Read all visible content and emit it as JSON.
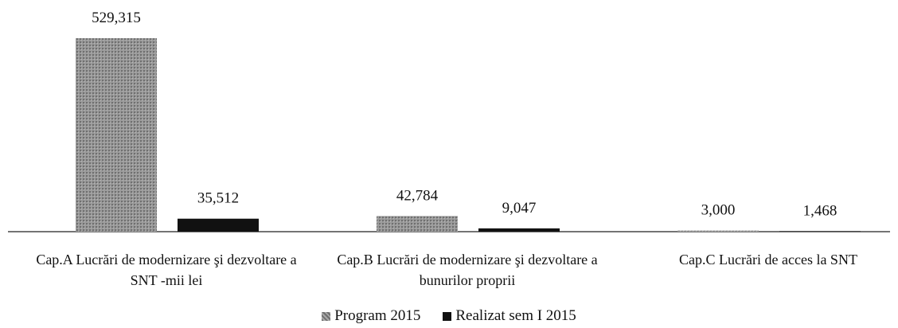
{
  "chart_data": {
    "type": "bar",
    "categories": [
      "Cap.A Lucrări de modernizare şi dezvoltare a SNT -mii lei",
      "Cap.B Lucrări de modernizare şi dezvoltare a bunurilor proprii",
      "Cap.C Lucrări de acces la SNT"
    ],
    "series": [
      {
        "name": "Program 2015",
        "color": "#8c8c8c",
        "values": [
          529315,
          42784,
          3000
        ],
        "value_labels": [
          "529,315",
          "42,784",
          "3,000"
        ]
      },
      {
        "name": "Realizat sem I 2015",
        "color": "#111111",
        "values": [
          35512,
          9047,
          1468
        ],
        "value_labels": [
          "35,512",
          "9,047",
          "1,468"
        ]
      }
    ],
    "legend": "bottom"
  }
}
